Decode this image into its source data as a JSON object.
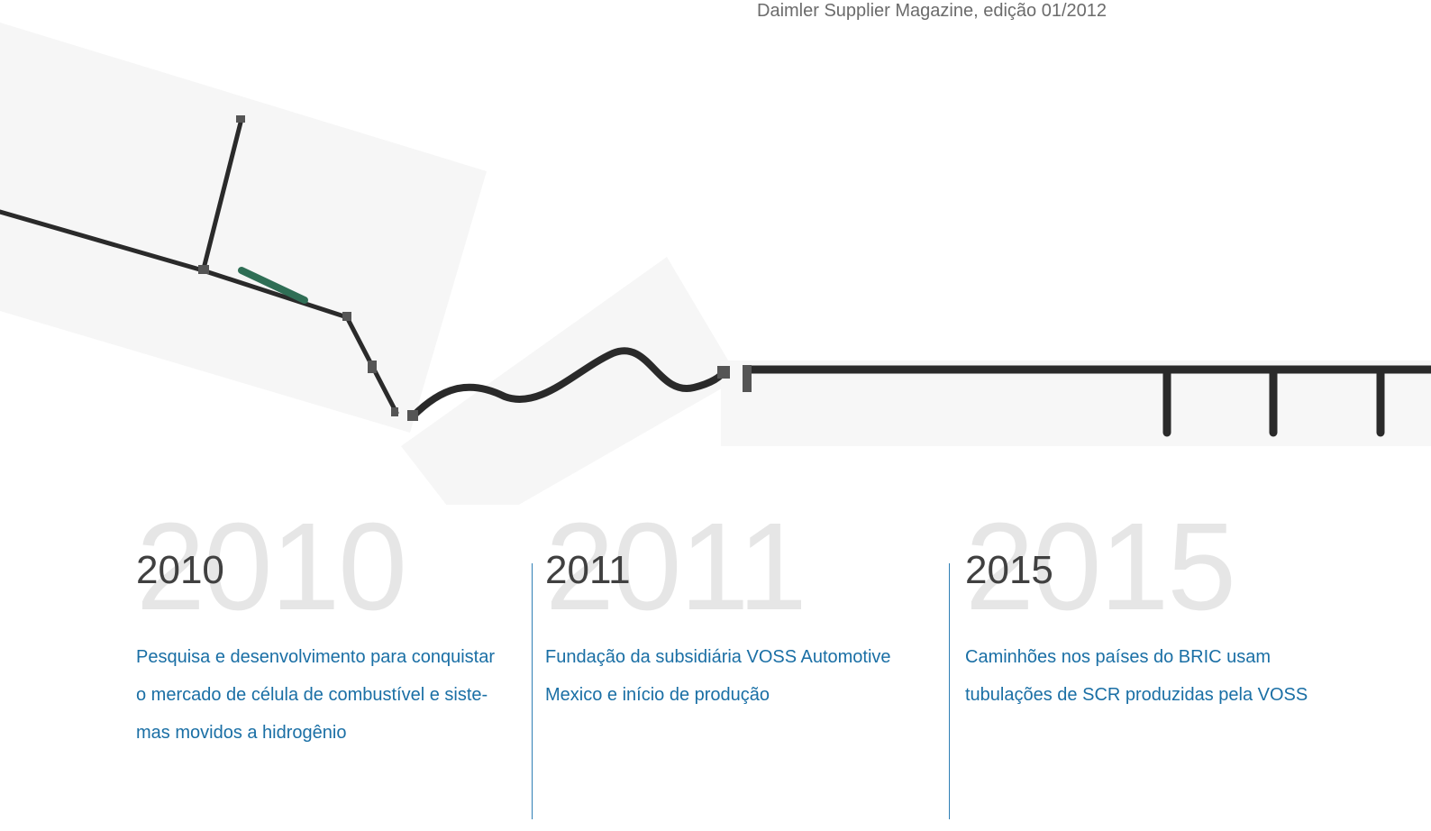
{
  "header": {
    "caption": "Daimler Supplier Magazine, edição 01/2012"
  },
  "timeline": [
    {
      "year": "2010",
      "lines": [
        "Pesquisa e desenvolvimento para conquistar",
        "o mercado de célula de combustível e siste-",
        "mas movidos a hidrogênio"
      ]
    },
    {
      "year": "2011",
      "lines": [
        "Fundação da subsidiária VOSS Automotive",
        "Mexico e início de produção"
      ]
    },
    {
      "year": "2015",
      "lines": [
        "Caminhões nos países do BRIC usam",
        "tubulações de SCR produzidas pela VOSS"
      ]
    }
  ]
}
